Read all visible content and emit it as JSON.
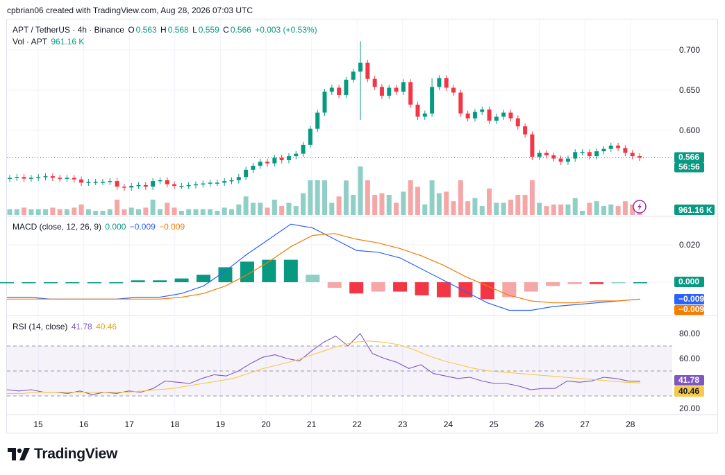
{
  "credit": "cpbrian06 created with TradingView.com, Aug 28, 2026 07:03 UTC",
  "brand": "TradingView",
  "header": {
    "symbol": "APT / TetherUS · 4h · Binance",
    "o_label": "O",
    "o": "0.563",
    "h_label": "H",
    "h": "0.568",
    "l_label": "L",
    "l": "0.559",
    "c_label": "C",
    "c": "0.566",
    "change": "+0.003 (+0.53%)",
    "vol_label": "Vol · APT",
    "vol": "961.16 K"
  },
  "macd_legend": {
    "name": "MACD (close, 12, 26, 9)",
    "hist": "0.000",
    "macd": "−0.009",
    "signal": "−0.009"
  },
  "rsi_legend": {
    "name": "RSI (14, close)",
    "rsi": "41.78",
    "ma": "40.46"
  },
  "colors": {
    "up": "#089981",
    "down": "#f23645",
    "up_vol": "#8fcfc6",
    "down_vol": "#f5a6a6",
    "macd": "#2962ff",
    "signal": "#f57c00",
    "rsi": "#7e57c2",
    "rsi_ma": "#f7c948"
  },
  "tags": {
    "price": "0.566",
    "countdown": "56:56",
    "volume": "961.16 K",
    "hist": "0.000",
    "macd": "−0.009",
    "signal": "−0.009",
    "rsi": "41.78",
    "rsi_ma": "40.46"
  },
  "chart_data": [
    {
      "type": "candlestick",
      "title": "APT / TetherUS · 4h · Binance",
      "x": [
        "14",
        "15",
        "16",
        "17",
        "18",
        "19",
        "20",
        "21",
        "22",
        "23",
        "24",
        "25",
        "26",
        "27",
        "28"
      ],
      "x_tick_labels": [
        "15",
        "16",
        "17",
        "18",
        "19",
        "20",
        "21",
        "22",
        "23",
        "24",
        "25",
        "26",
        "27",
        "28"
      ],
      "ylim": [
        0.54,
        0.73
      ],
      "y_ticks": [
        0.6,
        0.65,
        0.7
      ],
      "y_tick_labels": [
        "0.600",
        "0.650",
        "0.700"
      ],
      "last_price": 0.566,
      "closes": [
        0.541,
        0.542,
        0.54,
        0.541,
        0.542,
        0.543,
        0.541,
        0.54,
        0.541,
        0.539,
        0.535,
        0.536,
        0.536,
        0.536,
        0.537,
        0.53,
        0.529,
        0.531,
        0.532,
        0.53,
        0.537,
        0.538,
        0.533,
        0.531,
        0.531,
        0.532,
        0.533,
        0.534,
        0.535,
        0.535,
        0.537,
        0.538,
        0.542,
        0.551,
        0.556,
        0.561,
        0.559,
        0.566,
        0.563,
        0.568,
        0.571,
        0.582,
        0.602,
        0.622,
        0.648,
        0.653,
        0.644,
        0.663,
        0.673,
        0.684,
        0.664,
        0.654,
        0.643,
        0.653,
        0.648,
        0.66,
        0.632,
        0.617,
        0.621,
        0.654,
        0.665,
        0.653,
        0.647,
        0.621,
        0.615,
        0.623,
        0.626,
        0.612,
        0.617,
        0.622,
        0.615,
        0.605,
        0.595,
        0.567,
        0.572,
        0.569,
        0.565,
        0.561,
        0.565,
        0.573,
        0.573,
        0.568,
        0.574,
        0.577,
        0.581,
        0.578,
        0.572,
        0.568,
        0.566
      ],
      "volume_series": "Vol · APT",
      "volume_last": "961.16 K"
    },
    {
      "type": "line",
      "title": "MACD (close, 12, 26, 9)",
      "y_ticks": [
        0.0,
        0.02
      ],
      "y_tick_labels": [
        "0.000",
        "0.020"
      ],
      "series": [
        {
          "name": "MACD",
          "values": [
            -0.008,
            -0.008,
            -0.009,
            -0.009,
            -0.009,
            -0.009,
            -0.008,
            -0.008,
            -0.006,
            -0.002,
            0.006,
            0.015,
            0.023,
            0.031,
            0.029,
            0.023,
            0.017,
            0.016,
            0.013,
            0.007,
            0.001,
            -0.005,
            -0.011,
            -0.015,
            -0.015,
            -0.013,
            -0.012,
            -0.011,
            -0.01,
            -0.009
          ]
        },
        {
          "name": "Signal",
          "values": [
            -0.009,
            -0.009,
            -0.009,
            -0.009,
            -0.009,
            -0.009,
            -0.009,
            -0.009,
            -0.008,
            -0.006,
            -0.002,
            0.004,
            0.011,
            0.019,
            0.025,
            0.026,
            0.023,
            0.021,
            0.018,
            0.014,
            0.009,
            0.003,
            -0.002,
            -0.007,
            -0.01,
            -0.011,
            -0.011,
            -0.01,
            -0.01,
            -0.009
          ]
        },
        {
          "name": "Histogram",
          "values": [
            0.0,
            0.0,
            0.0,
            0.0,
            0.0,
            0.0,
            0.001,
            0.001,
            0.002,
            0.004,
            0.008,
            0.011,
            0.012,
            0.012,
            0.004,
            -0.003,
            -0.006,
            -0.005,
            -0.005,
            -0.007,
            -0.008,
            -0.008,
            -0.009,
            -0.008,
            -0.005,
            -0.002,
            -0.001,
            -0.001,
            0.0,
            0.0
          ]
        }
      ]
    },
    {
      "type": "line",
      "title": "RSI (14, close)",
      "ylim": [
        15,
        95
      ],
      "y_ticks": [
        20.0,
        60.0,
        80.0
      ],
      "y_tick_labels": [
        "20.00",
        "60.00",
        "80.00"
      ],
      "bands": [
        30,
        50,
        70
      ],
      "series": [
        {
          "name": "RSI",
          "values": [
            35,
            34,
            35,
            33,
            33,
            32,
            34,
            31,
            33,
            32,
            34,
            33,
            36,
            42,
            41,
            40,
            44,
            47,
            46,
            50,
            56,
            61,
            63,
            60,
            58,
            66,
            73,
            78,
            70,
            80,
            64,
            60,
            57,
            52,
            55,
            48,
            46,
            44,
            45,
            42,
            40,
            40,
            38,
            35,
            36,
            36,
            42,
            41,
            42,
            45,
            44,
            42,
            41.78
          ]
        },
        {
          "name": "RSI MA",
          "values": [
            32,
            32,
            33,
            33,
            33,
            33,
            33,
            33,
            33,
            34,
            35,
            36,
            38,
            40,
            42,
            44,
            48,
            52,
            55,
            58,
            62,
            66,
            70,
            73,
            74,
            73,
            71,
            67,
            62,
            58,
            55,
            52,
            50,
            49,
            48,
            47,
            46,
            45,
            44,
            43,
            42,
            41,
            40.46
          ]
        }
      ]
    }
  ]
}
